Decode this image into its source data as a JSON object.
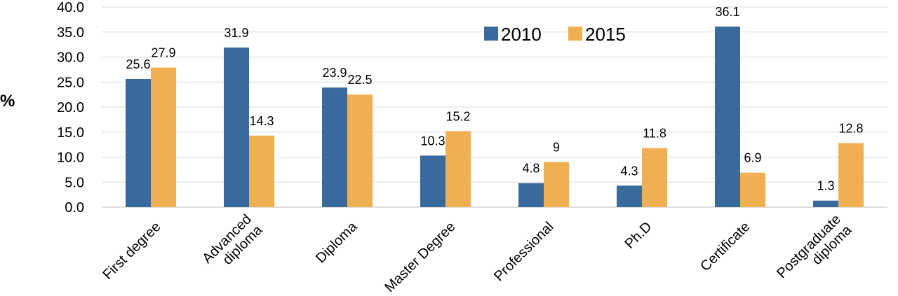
{
  "chart_data": {
    "type": "bar",
    "title": "",
    "xlabel": "",
    "ylabel": "%",
    "ylim": [
      0,
      40
    ],
    "yticks": [
      "0.0",
      "5.0",
      "10.0",
      "15.0",
      "20.0",
      "25.0",
      "30.0",
      "35.0",
      "40.0"
    ],
    "grid": true,
    "legend_position": "top-center",
    "categories": [
      [
        "First degree"
      ],
      [
        "Advanced",
        "diploma"
      ],
      [
        "Diploma"
      ],
      [
        "Master Degree"
      ],
      [
        "Professional"
      ],
      [
        "Ph.D"
      ],
      [
        "Certificate"
      ],
      [
        "Postgraduate",
        "diploma"
      ]
    ],
    "series": [
      {
        "name": "2010",
        "color": "#3a6a9c",
        "values": [
          25.6,
          31.9,
          23.9,
          10.3,
          4.8,
          4.3,
          36.1,
          1.3
        ],
        "labels": [
          "25.6",
          "31.9",
          "23.9",
          "10.3",
          "4.8",
          "4.3",
          "36.1",
          "1.3"
        ]
      },
      {
        "name": "2015",
        "color": "#f0b052",
        "values": [
          27.9,
          14.3,
          22.5,
          15.2,
          9,
          11.8,
          6.9,
          12.8
        ],
        "labels": [
          "27.9",
          "14.3",
          "22.5",
          "15.2",
          "9",
          "11.8",
          "6.9",
          "12.8"
        ]
      }
    ]
  }
}
